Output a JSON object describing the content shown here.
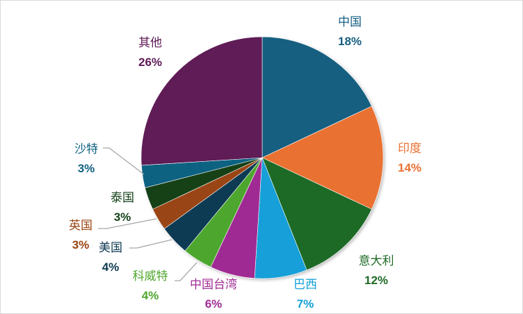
{
  "chart_data": {
    "type": "pie",
    "start_angle": "top, clockwise",
    "legend": "none (data labels with category name and percent)",
    "slices": [
      {
        "label": "中国",
        "value": 18,
        "text": "18%",
        "color": "#165e80"
      },
      {
        "label": "印度",
        "value": 14,
        "text": "14%",
        "color": "#e97132"
      },
      {
        "label": "意大利",
        "value": 12,
        "text": "12%",
        "color": "#1e6b26"
      },
      {
        "label": "巴西",
        "value": 7,
        "text": "7%",
        "color": "#129fd8"
      },
      {
        "label": "中国台湾",
        "value": 6,
        "text": "6%",
        "color": "#a02b93"
      },
      {
        "label": "科威特",
        "value": 4,
        "text": "4%",
        "color": "#4ea72e"
      },
      {
        "label": "美国",
        "value": 4,
        "text": "4%",
        "color": "#0f3a52"
      },
      {
        "label": "英国",
        "value": 3,
        "text": "3%",
        "color": "#9a4413"
      },
      {
        "label": "泰国",
        "value": 3,
        "text": "3%",
        "color": "#123f16"
      },
      {
        "label": "沙特",
        "value": 3,
        "text": "3%",
        "color": "#0f6282"
      },
      {
        "label": "其他",
        "value": 26,
        "text": "26%",
        "color": "#5e1a56"
      }
    ]
  }
}
